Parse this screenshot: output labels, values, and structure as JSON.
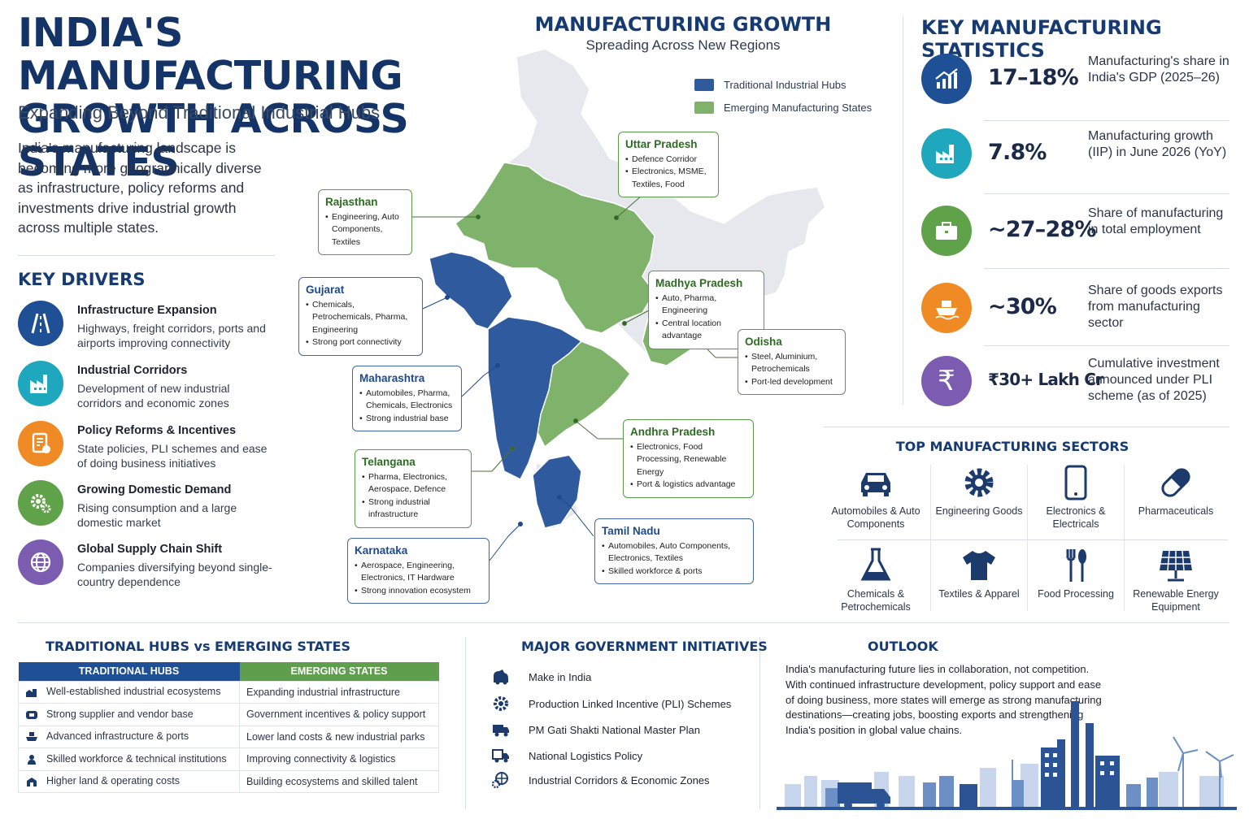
{
  "header": {
    "title": "INDIA'S MANUFACTURING GROWTH ACROSS STATES",
    "subtitle": "Expanding Beyond Traditional Industrial Hubs",
    "intro": "India's manufacturing landscape is becoming more geographically diverse as infrastructure, policy reforms and investments drive industrial growth across multiple states."
  },
  "drivers": {
    "title": "KEY DRIVERS",
    "items": [
      {
        "title": "Infrastructure Expansion",
        "desc": "Highways, freight corridors, ports and airports improving connectivity",
        "icon": "road-icon",
        "color": "#1f4f95"
      },
      {
        "title": "Industrial Corridors",
        "desc": "Development of new industrial corridors and economic zones",
        "icon": "factory-icon",
        "color": "#1fa8bd"
      },
      {
        "title": "Policy Reforms & Incentives",
        "desc": "State policies, PLI schemes and ease of doing business initiatives",
        "icon": "document-icon",
        "color": "#f08a24"
      },
      {
        "title": "Growing Domestic Demand",
        "desc": "Rising consumption and a large domestic market",
        "icon": "gears-icon",
        "color": "#5fa24a"
      },
      {
        "title": "Global Supply Chain Shift",
        "desc": "Companies diversifying beyond single-country dependence",
        "icon": "globe-icon",
        "color": "#7b5cb0"
      }
    ]
  },
  "map": {
    "title": "MANUFACTURING GROWTH",
    "subtitle": "Spreading Across New Regions",
    "legend": [
      {
        "label": "Traditional Industrial Hubs",
        "color": "#2f5a9e"
      },
      {
        "label": "Emerging Manufacturing States",
        "color": "#7fb26a"
      }
    ],
    "callouts": {
      "rajasthan": {
        "name": "Rajasthan",
        "items": [
          "Engineering, Auto Components, Textiles"
        ]
      },
      "uttar_pradesh": {
        "name": "Uttar Pradesh",
        "items": [
          "Defence Corridor",
          "Electronics, MSME, Textiles, Food"
        ]
      },
      "gujarat": {
        "name": "Gujarat",
        "items": [
          "Chemicals, Petrochemicals, Pharma, Engineering",
          "Strong port connectivity"
        ]
      },
      "madhya_pradesh": {
        "name": "Madhya Pradesh",
        "items": [
          "Auto, Pharma, Engineering",
          "Central location advantage"
        ]
      },
      "odisha": {
        "name": "Odisha",
        "items": [
          "Steel, Aluminium, Petrochemicals",
          "Port-led development"
        ]
      },
      "maharashtra": {
        "name": "Maharashtra",
        "items": [
          "Automobiles, Pharma, Chemicals, Electronics",
          "Strong industrial base"
        ]
      },
      "andhra_pradesh": {
        "name": "Andhra Pradesh",
        "items": [
          "Electronics, Food Processing, Renewable Energy",
          "Port & logistics advantage"
        ]
      },
      "telangana": {
        "name": "Telangana",
        "items": [
          "Pharma, Electronics, Aerospace, Defence",
          "Strong industrial infrastructure"
        ]
      },
      "tamil_nadu": {
        "name": "Tamil Nadu",
        "items": [
          "Automobiles, Auto Components, Electronics, Textiles",
          "Skilled workforce & ports"
        ]
      },
      "karnataka": {
        "name": "Karnataka",
        "items": [
          "Aerospace, Engineering, Electronics, IT Hardware",
          "Strong innovation ecosystem"
        ]
      }
    }
  },
  "stats": {
    "title": "KEY MANUFACTURING STATISTICS",
    "items": [
      {
        "value": "17–18%",
        "desc": "Manufacturing's share in India's GDP (2025–26)",
        "icon": "growth-chart-icon",
        "color": "#1f4f95"
      },
      {
        "value": "7.8%",
        "desc": "Manufacturing growth (IIP) in June 2026 (YoY)",
        "icon": "factory-icon",
        "color": "#1fa8bd"
      },
      {
        "value": "~27–28%",
        "desc": "Share of manufacturing in total employment",
        "icon": "briefcase-icon",
        "color": "#5fa24a"
      },
      {
        "value": "~30%",
        "desc": "Share of goods exports from manufacturing sector",
        "icon": "ship-icon",
        "color": "#f08a24"
      },
      {
        "value": "₹30+ Lakh Cr",
        "desc": "Cumulative investment announced under PLI scheme (as of 2025)",
        "icon": "rupee-icon",
        "color": "#7b5cb0"
      }
    ]
  },
  "sectors": {
    "title": "TOP MANUFACTURING SECTORS",
    "items": [
      {
        "label": "Automobiles & Auto Components",
        "icon": "car-icon"
      },
      {
        "label": "Engineering Goods",
        "icon": "gear-icon"
      },
      {
        "label": "Electronics & Electricals",
        "icon": "smartphone-icon"
      },
      {
        "label": "Pharmaceuticals",
        "icon": "capsule-icon"
      },
      {
        "label": "Chemicals & Petrochemicals",
        "icon": "flask-icon"
      },
      {
        "label": "Textiles & Apparel",
        "icon": "tshirt-icon"
      },
      {
        "label": "Food Processing",
        "icon": "fork-spoon-icon"
      },
      {
        "label": "Renewable Energy Equipment",
        "icon": "solar-panel-icon"
      }
    ]
  },
  "comparison": {
    "title": "TRADITIONAL HUBS vs EMERGING STATES",
    "headers": [
      "TRADITIONAL HUBS",
      "EMERGING STATES"
    ],
    "header_colors": [
      "#1f4f95",
      "#5f9e4c"
    ],
    "rows": [
      [
        "Well-established industrial ecosystems",
        "Expanding industrial infrastructure"
      ],
      [
        "Strong supplier and vendor base",
        "Government incentives & policy support"
      ],
      [
        "Advanced infrastructure & ports",
        "Lower land costs & new industrial parks"
      ],
      [
        "Skilled workforce & technical institutions",
        "Improving connectivity & logistics"
      ],
      [
        "Higher land & operating costs",
        "Building ecosystems and skilled talent"
      ]
    ]
  },
  "initiatives": {
    "title": "MAJOR GOVERNMENT INITIATIVES",
    "items": [
      {
        "label": "Make in India",
        "icon": "lion-icon"
      },
      {
        "label": "Production Linked Incentive (PLI) Schemes",
        "icon": "gear-icon"
      },
      {
        "label": "PM Gati Shakti National Master Plan",
        "icon": "truck-icon"
      },
      {
        "label": "National Logistics Policy",
        "icon": "truck-icon"
      },
      {
        "label": "Industrial Corridors & Economic Zones",
        "icon": "globe-gear-icon"
      }
    ]
  },
  "outlook": {
    "title": "OUTLOOK",
    "text": "India's manufacturing future lies in collaboration, not competition. With continued infrastructure development, policy support and ease of doing business, more states will emerge as strong manufacturing destinations—creating jobs, boosting exports and strengthening India's position in global value chains."
  }
}
